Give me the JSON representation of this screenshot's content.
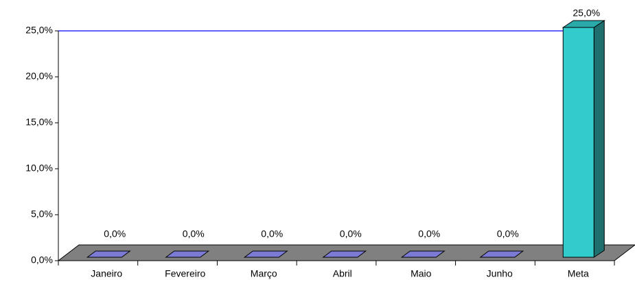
{
  "chart_data": {
    "type": "bar3d",
    "categories": [
      "Janeiro",
      "Fevereiro",
      "Março",
      "Abril",
      "Maio",
      "Junho",
      "Meta"
    ],
    "values": [
      0,
      0,
      0,
      0,
      0,
      0,
      25
    ],
    "value_labels": [
      "0,0%",
      "0,0%",
      "0,0%",
      "0,0%",
      "0,0%",
      "0,0%",
      "25,0%"
    ],
    "colors": [
      "#7b7bd6",
      "#7b7bd6",
      "#7b7bd6",
      "#7b7bd6",
      "#7b7bd6",
      "#7b7bd6",
      "#33cccc"
    ],
    "ylim": [
      0,
      25
    ],
    "yticks": [
      {
        "value": 0,
        "label": "0,0%"
      },
      {
        "value": 5,
        "label": "5,0%"
      },
      {
        "value": 10,
        "label": "10,0%"
      },
      {
        "value": 15,
        "label": "15,0%"
      },
      {
        "value": 20,
        "label": "20,0%"
      },
      {
        "value": 25,
        "label": "25,0%"
      }
    ]
  }
}
